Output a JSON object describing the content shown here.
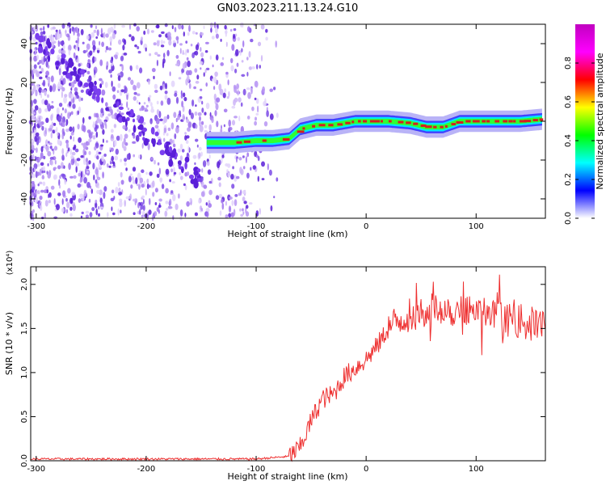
{
  "title": "GN03.2023.211.13.24.G10",
  "colors": {
    "signal": "#d42020",
    "scatter": "#8a3cf0",
    "snr_line": "#ee3030",
    "colorbar": [
      "#c000c0",
      "#ff00ff",
      "#ff0000",
      "#ffff00",
      "#00ff00",
      "#00ffff",
      "#0000ff",
      "#ffffff"
    ]
  },
  "chart_data": [
    {
      "type": "heatmap",
      "xlabel": "Height of straight line (km)",
      "ylabel": "Frequency (Hz)",
      "xlim": [
        -305,
        163
      ],
      "ylim": [
        -50,
        50
      ],
      "xticks": [
        -300,
        -200,
        -100,
        0,
        100
      ],
      "xtick_labels": [
        "-300",
        "-200",
        "-100",
        "0",
        "100"
      ],
      "yticks": [
        -40,
        -20,
        0,
        20,
        40
      ],
      "ytick_labels": [
        "-40",
        "-20",
        "0",
        "20",
        "40"
      ],
      "colorbar": {
        "label": "Normalized spectral amplitude",
        "range": [
          0,
          1
        ],
        "ticks": [
          0.0,
          0.2,
          0.4,
          0.6,
          0.8
        ],
        "tick_labels": [
          "0.0",
          "0.2",
          "0.4",
          "0.6",
          "0.8"
        ]
      },
      "signal_track": {
        "x": [
          -145,
          -120,
          -100,
          -85,
          -70,
          -60,
          -45,
          -30,
          -20,
          -10,
          0,
          20,
          40,
          55,
          70,
          85,
          100,
          120,
          140,
          160
        ],
        "y": [
          -11,
          -11,
          -10,
          -10,
          -9,
          -4,
          -2,
          -2,
          -1,
          0,
          0,
          0,
          -1,
          -3,
          -3,
          0,
          0,
          0,
          0,
          1
        ]
      },
      "grid": false
    },
    {
      "type": "line",
      "xlabel": "Height of straight line (km)",
      "ylabel": "SNR (10 * v/v)",
      "y_multiplier": "(x10⁴)",
      "xlim": [
        -305,
        163
      ],
      "ylim": [
        0,
        2.2
      ],
      "xticks": [
        -300,
        -200,
        -100,
        0,
        100
      ],
      "xtick_labels": [
        "-300",
        "-200",
        "-100",
        "0",
        "100"
      ],
      "yticks": [
        0.0,
        0.5,
        1.0,
        1.5,
        2.0
      ],
      "ytick_labels": [
        "0.0",
        "0.5",
        "1.0",
        "1.5",
        "2.0"
      ],
      "series": [
        {
          "x": [
            -305,
            -200,
            -100,
            -70,
            -60,
            -50,
            -40,
            -30,
            -20,
            -10,
            0,
            10,
            20,
            30,
            40,
            50,
            60,
            70,
            80,
            90,
            100,
            110,
            120,
            130,
            140,
            150,
            163
          ],
          "y": [
            0.02,
            0.02,
            0.02,
            0.05,
            0.15,
            0.45,
            0.7,
            0.75,
            0.95,
            1.05,
            1.15,
            1.3,
            1.5,
            1.6,
            1.65,
            1.72,
            1.7,
            1.75,
            1.7,
            1.72,
            1.68,
            1.65,
            1.62,
            1.6,
            1.58,
            1.55,
            1.55
          ]
        }
      ],
      "grid": false
    }
  ]
}
